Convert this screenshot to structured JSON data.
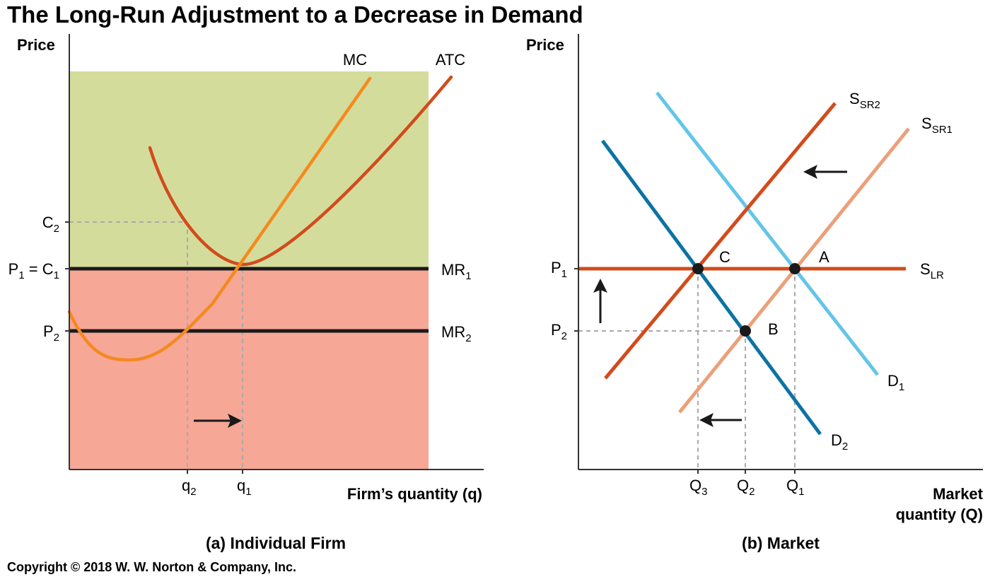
{
  "title": "The Long-Run Adjustment to a Decrease in Demand",
  "copyright": "Copyright © 2018 W. W. Norton & Company, Inc.",
  "colors": {
    "profit_region": "#d4dc9c",
    "loss_region": "#f6a796",
    "mc": "#f5891f",
    "atc": "#d24b1c",
    "s_sr2": "#d24b1c",
    "s_lr": "#d24b1c",
    "s_sr1": "#eba07a",
    "d1": "#63c5e8",
    "d2": "#0c73a4",
    "guide": "#aaaaaa",
    "axis": "#333333"
  },
  "panel_a": {
    "caption": "(a) Individual Firm",
    "y_axis_label": "Price",
    "x_axis_label": "Firm’s quantity (q)",
    "curves": {
      "mc": "MC",
      "atc": "ATC"
    },
    "price_ticks": {
      "c2": {
        "base": "C",
        "sub": "2"
      },
      "p1c1": {
        "base": "P",
        "sub": "1",
        "mid": " = C",
        "sub2": "1"
      },
      "p2": {
        "base": "P",
        "sub": "2"
      }
    },
    "demand_lines": {
      "mr1": {
        "base": "MR",
        "sub": "1"
      },
      "mr2": {
        "base": "MR",
        "sub": "2"
      }
    },
    "quantity_ticks": {
      "q2": {
        "base": "q",
        "sub": "2"
      },
      "q1": {
        "base": "q",
        "sub": "1"
      }
    },
    "arrow": "right"
  },
  "panel_b": {
    "caption": "(b) Market",
    "y_axis_label": "Price",
    "x_axis_label_line1": "Market",
    "x_axis_label_line2": "quantity (Q)",
    "curves": {
      "s_sr2": {
        "base": "S",
        "sub": "SR2"
      },
      "s_sr1": {
        "base": "S",
        "sub": "SR1"
      },
      "s_lr": {
        "base": "S",
        "sub": "LR"
      },
      "d1": {
        "base": "D",
        "sub": "1"
      },
      "d2": {
        "base": "D",
        "sub": "2"
      }
    },
    "price_ticks": {
      "p1": {
        "base": "P",
        "sub": "1"
      },
      "p2": {
        "base": "P",
        "sub": "2"
      }
    },
    "quantity_ticks": {
      "q3": {
        "base": "Q",
        "sub": "3"
      },
      "q2": {
        "base": "Q",
        "sub": "2"
      },
      "q1": {
        "base": "Q",
        "sub": "1"
      }
    },
    "points": {
      "a": "A",
      "b": "B",
      "c": "C"
    },
    "arrows": [
      "left",
      "up",
      "left"
    ]
  }
}
